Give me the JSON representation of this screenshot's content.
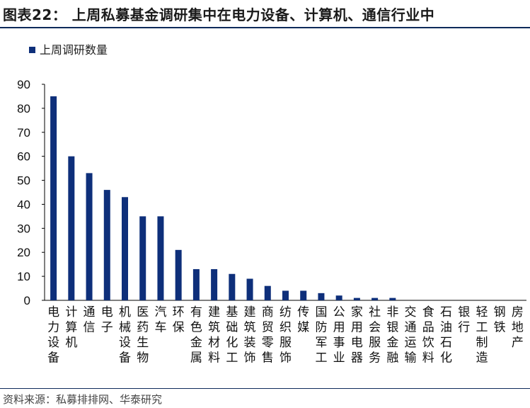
{
  "header": {
    "title": "图表22：   上周私募基金调研集中在电力设备、计算机、通信行业中"
  },
  "footer": {
    "source": "资料来源：私募排排网、华泰研究"
  },
  "colors": {
    "bar": "#0e2f7a",
    "axis": "#000000",
    "accent": "#0e2a5a"
  },
  "chart_data": {
    "type": "bar",
    "title": "",
    "xlabel": "",
    "ylabel": "",
    "ylim": [
      0,
      90
    ],
    "yticks": [
      0,
      10,
      20,
      30,
      40,
      50,
      60,
      70,
      80,
      90
    ],
    "grid": false,
    "legend_position": "top-left",
    "categories": [
      "电力设备",
      "计算机",
      "通信",
      "电子",
      "机械设备",
      "医药生物",
      "汽车",
      "环保",
      "有色金属",
      "建筑材料",
      "基础化工",
      "建筑装饰",
      "商贸零售",
      "纺织服饰",
      "传媒",
      "国防军工",
      "公用事业",
      "家用电器",
      "社会服务",
      "非银金融",
      "交通运输",
      "食品饮料",
      "石油石化",
      "银行",
      "轻工制造",
      "钢铁",
      "房地产"
    ],
    "series": [
      {
        "name": "上周调研数量",
        "values": [
          85,
          60,
          53,
          46,
          43,
          35,
          35,
          21,
          13,
          13,
          11,
          9,
          6,
          4,
          4,
          3,
          2,
          1,
          1,
          1,
          0,
          0,
          0,
          0,
          0,
          0,
          0
        ]
      }
    ]
  }
}
